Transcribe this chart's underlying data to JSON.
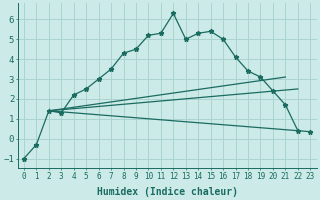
{
  "xlabel": "Humidex (Indice chaleur)",
  "ylabel": "",
  "bg_color": "#cceae7",
  "line_color": "#1a6b60",
  "xlim": [
    -0.5,
    23.5
  ],
  "ylim": [
    -1.5,
    6.8
  ],
  "yticks": [
    -1,
    0,
    1,
    2,
    3,
    4,
    5,
    6
  ],
  "xticks": [
    0,
    1,
    2,
    3,
    4,
    5,
    6,
    7,
    8,
    9,
    10,
    11,
    12,
    13,
    14,
    15,
    16,
    17,
    18,
    19,
    20,
    21,
    22,
    23
  ],
  "series1_x": [
    0,
    1,
    2,
    3,
    4,
    5,
    6,
    7,
    8,
    9,
    10,
    11,
    12,
    13,
    14,
    15,
    16,
    17,
    18,
    19,
    20,
    21,
    22,
    23
  ],
  "series1_y": [
    -1.0,
    -0.3,
    1.4,
    1.3,
    2.2,
    2.5,
    3.0,
    3.5,
    4.3,
    4.5,
    5.2,
    5.3,
    6.3,
    5.0,
    5.3,
    5.4,
    5.0,
    4.1,
    3.4,
    3.1,
    2.4,
    1.7,
    0.4,
    0.35
  ],
  "series2_x": [
    2,
    21
  ],
  "series2_y": [
    1.4,
    3.1
  ],
  "series3_x": [
    2,
    22
  ],
  "series3_y": [
    1.4,
    0.4
  ],
  "series4_x": [
    2,
    22
  ],
  "series4_y": [
    1.4,
    2.5
  ],
  "grid_color": "#aad4d0",
  "xlabel_fontsize": 7,
  "tick_fontsize": 5.5,
  "ytick_fontsize": 6.5
}
